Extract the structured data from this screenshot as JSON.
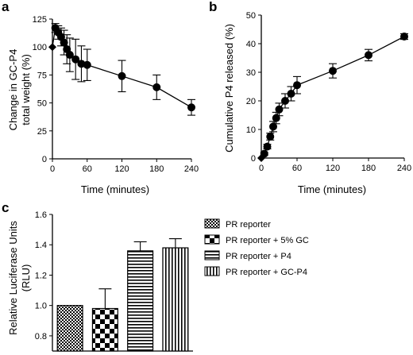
{
  "chart_data": [
    {
      "panel_label": "a",
      "type": "scatter",
      "xlabel": "Time (minutes)",
      "ylabel_lines": [
        "Change in GC-P4",
        "total weight (%)"
      ],
      "xlim": [
        0,
        240
      ],
      "ylim": [
        0,
        125
      ],
      "xticks": [
        0,
        60,
        120,
        180,
        240
      ],
      "yticks": [
        0,
        25,
        50,
        75,
        100,
        125
      ],
      "series": [
        {
          "x": [
            0,
            5,
            10,
            15,
            20,
            25,
            30,
            40,
            50,
            60,
            120,
            180,
            240
          ],
          "y": [
            100,
            117,
            113,
            109,
            104,
            98,
            93,
            89,
            85,
            84,
            74,
            64,
            46
          ],
          "err": [
            0,
            4,
            6,
            8,
            11,
            13,
            15,
            18,
            16,
            14,
            14,
            11,
            7
          ]
        }
      ]
    },
    {
      "panel_label": "b",
      "type": "scatter",
      "xlabel": "Time (minutes)",
      "ylabel": "Cumulative P4 released (%)",
      "xlim": [
        0,
        240
      ],
      "ylim": [
        0,
        50
      ],
      "xticks": [
        0,
        60,
        120,
        180,
        240
      ],
      "yticks": [
        0,
        10,
        20,
        30,
        40,
        50
      ],
      "series": [
        {
          "x": [
            0,
            5,
            10,
            15,
            20,
            25,
            30,
            40,
            50,
            60,
            120,
            180,
            240
          ],
          "y": [
            0,
            1.5,
            4,
            7.5,
            11,
            14,
            17,
            20,
            22.5,
            25.5,
            30.5,
            36,
            42.5
          ],
          "err": [
            0,
            0.5,
            0.8,
            1.2,
            1.8,
            2,
            2.2,
            2.5,
            2.5,
            3,
            2.5,
            2,
            1
          ]
        }
      ]
    },
    {
      "panel_label": "c",
      "type": "bar",
      "ylabel_lines": [
        "Relative Luciferase Units",
        "(RLU)"
      ],
      "ylim": [
        0.7,
        1.6
      ],
      "yticks": [
        0.8,
        1.0,
        1.2,
        1.4,
        1.6
      ],
      "categories": [
        "PR reporter",
        "PR reporter + 5% GC",
        "PR reporter + P4",
        "PR reporter + GC-P4"
      ],
      "values": [
        1.0,
        0.98,
        1.36,
        1.38
      ],
      "err": [
        0,
        0.13,
        0.06,
        0.06
      ],
      "patterns": [
        "fine-checker",
        "coarse-checker",
        "horizontal-stripes",
        "vertical-stripes"
      ]
    }
  ]
}
